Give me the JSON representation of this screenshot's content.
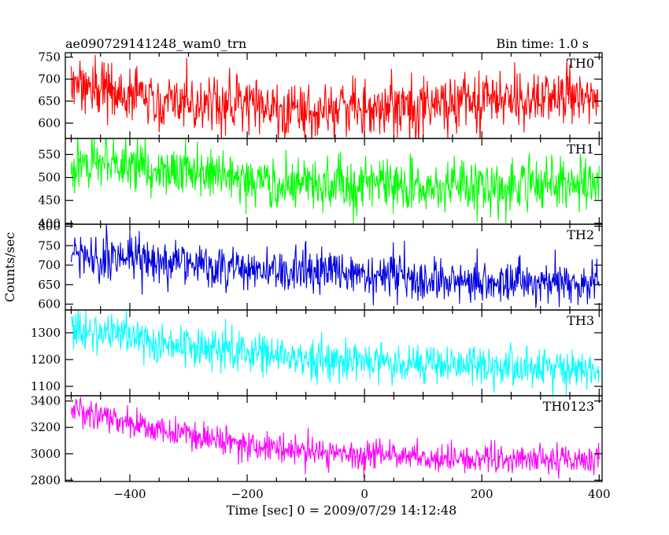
{
  "header": {
    "title": "ae090729141248_wam0_trn",
    "bin_time": "Bin time: 1.0 s"
  },
  "chart_data": {
    "type": "line",
    "title": "ae090729141248_wam0_trn",
    "subtitle": "Bin time: 1.0 s",
    "xlabel": "Time [sec] 0 = 2009/07/29 14:12:48",
    "ylabel": "Counts/sec",
    "xlim": [
      -510,
      405
    ],
    "x_ticks": [
      -400,
      -200,
      0,
      200,
      400
    ],
    "x_tick_labels": [
      "−400",
      "−200",
      "0",
      "200",
      "400"
    ],
    "x_start": -500,
    "x_end": 400,
    "bin": 1.0,
    "grid": false,
    "legend": "none",
    "series": [
      {
        "name": "TH0",
        "color": "#ff0000",
        "ylim": [
          565,
          760
        ],
        "y_ticks": [
          600,
          650,
          700,
          750
        ],
        "trend": [
          [
            -500,
            690
          ],
          [
            -400,
            670
          ],
          [
            -300,
            645
          ],
          [
            -200,
            635
          ],
          [
            -100,
            628
          ],
          [
            0,
            632
          ],
          [
            100,
            640
          ],
          [
            200,
            648
          ],
          [
            300,
            655
          ],
          [
            400,
            662
          ]
        ],
        "noise": 32
      },
      {
        "name": "TH1",
        "color": "#00ff00",
        "ylim": [
          398,
          585
        ],
        "y_ticks": [
          400,
          450,
          500,
          550
        ],
        "trend": [
          [
            -500,
            535
          ],
          [
            -400,
            525
          ],
          [
            -300,
            510
          ],
          [
            -200,
            495
          ],
          [
            -100,
            488
          ],
          [
            0,
            483
          ],
          [
            100,
            482
          ],
          [
            200,
            480
          ],
          [
            300,
            480
          ],
          [
            400,
            482
          ]
        ],
        "noise": 28
      },
      {
        "name": "TH2",
        "color": "#0000dd",
        "ylim": [
          585,
          805
        ],
        "y_ticks": [
          600,
          650,
          700,
          750,
          800
        ],
        "trend": [
          [
            -500,
            730
          ],
          [
            -400,
            715
          ],
          [
            -300,
            700
          ],
          [
            -200,
            688
          ],
          [
            -100,
            680
          ],
          [
            0,
            670
          ],
          [
            100,
            663
          ],
          [
            200,
            657
          ],
          [
            300,
            652
          ],
          [
            400,
            648
          ]
        ],
        "noise": 28
      },
      {
        "name": "TH3",
        "color": "#00ffff",
        "ylim": [
          1065,
          1385
        ],
        "y_ticks": [
          1100,
          1200,
          1300
        ],
        "trend": [
          [
            -500,
            1320
          ],
          [
            -400,
            1280
          ],
          [
            -300,
            1250
          ],
          [
            -200,
            1225
          ],
          [
            -100,
            1205
          ],
          [
            0,
            1190
          ],
          [
            100,
            1180
          ],
          [
            200,
            1175
          ],
          [
            300,
            1168
          ],
          [
            400,
            1165
          ]
        ],
        "noise": 38
      },
      {
        "name": "TH0123",
        "color": "#ff00ff",
        "ylim": [
          2790,
          3440
        ],
        "y_ticks": [
          2800,
          3000,
          3200,
          3400
        ],
        "trend": [
          [
            -500,
            3330
          ],
          [
            -400,
            3230
          ],
          [
            -300,
            3140
          ],
          [
            -200,
            3070
          ],
          [
            -100,
            3020
          ],
          [
            0,
            2990
          ],
          [
            100,
            2970
          ],
          [
            200,
            2960
          ],
          [
            300,
            2955
          ],
          [
            400,
            2950
          ]
        ],
        "noise": 55
      }
    ]
  }
}
